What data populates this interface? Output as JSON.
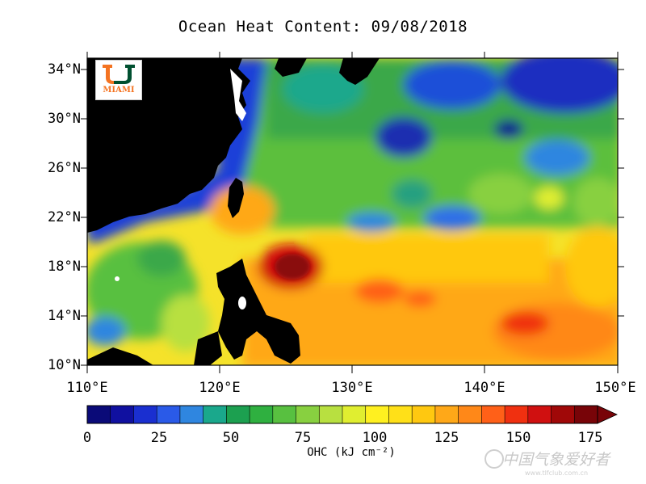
{
  "title": "Ocean Heat Content: 09/08/2018",
  "lat_ticks": [
    "34°N",
    "30°N",
    "26°N",
    "22°N",
    "18°N",
    "14°N",
    "10°N"
  ],
  "lon_ticks": [
    "110°E",
    "120°E",
    "130°E",
    "140°E",
    "150°E"
  ],
  "logo_text": "MIAMI",
  "colorbar": {
    "labels": [
      "0",
      "25",
      "50",
      "75",
      "100",
      "125",
      "150",
      "175"
    ],
    "title": "OHC (kJ cm⁻²)",
    "colors": [
      "#0a0a78",
      "#1010a0",
      "#1a2fd0",
      "#2a5ae8",
      "#2f86e0",
      "#1aa88c",
      "#1ca050",
      "#2fb040",
      "#58c040",
      "#88d040",
      "#b8e040",
      "#e0ee30",
      "#fff020",
      "#ffe018",
      "#ffc810",
      "#ffa818",
      "#ff8818",
      "#ff6018",
      "#f03010",
      "#d01010",
      "#a00808",
      "#780408"
    ]
  },
  "watermark": "中国气象爱好者",
  "watermark_url": "www.tlfclub.com.cn"
}
